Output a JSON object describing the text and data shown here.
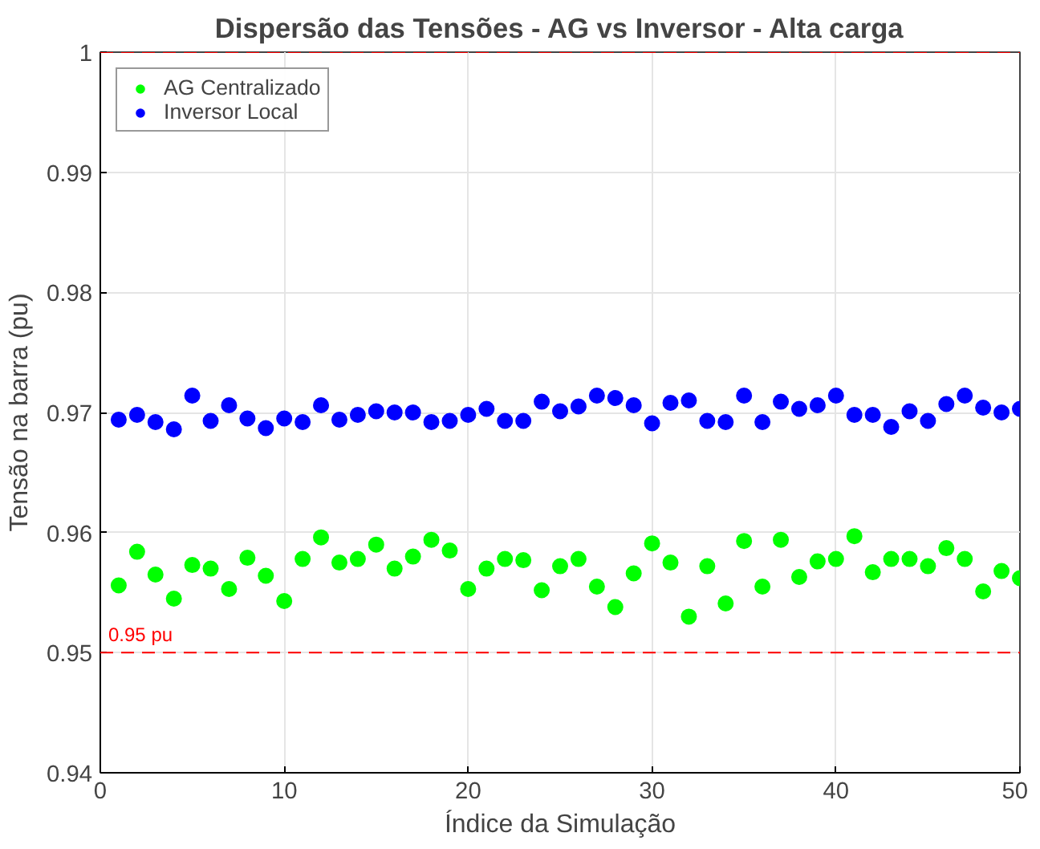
{
  "chart_data": {
    "type": "scatter",
    "title": "Dispersão das Tensões - AG vs Inversor - Alta carga",
    "xlabel": "Índice da Simulação",
    "ylabel": "Tensão na barra (pu)",
    "x": [
      1,
      2,
      3,
      4,
      5,
      6,
      7,
      8,
      9,
      10,
      11,
      12,
      13,
      14,
      15,
      16,
      17,
      18,
      19,
      20,
      21,
      22,
      23,
      24,
      25,
      26,
      27,
      28,
      29,
      30,
      31,
      32,
      33,
      34,
      35,
      36,
      37,
      38,
      39,
      40,
      41,
      42,
      43,
      44,
      45,
      46,
      47,
      48,
      49,
      50
    ],
    "series": [
      {
        "name": "AG Centralizado",
        "color": "#00ff00",
        "values": [
          0.9556,
          0.9584,
          0.9565,
          0.9545,
          0.9573,
          0.957,
          0.9553,
          0.9579,
          0.9564,
          0.9543,
          0.9578,
          0.9596,
          0.9575,
          0.9578,
          0.959,
          0.957,
          0.958,
          0.9594,
          0.9585,
          0.9553,
          0.957,
          0.9578,
          0.9577,
          0.9552,
          0.9572,
          0.9578,
          0.9555,
          0.9538,
          0.9566,
          0.9591,
          0.9575,
          0.953,
          0.9572,
          0.9541,
          0.9593,
          0.9555,
          0.9594,
          0.9563,
          0.9576,
          0.9578,
          0.9597,
          0.9567,
          0.9578,
          0.9578,
          0.9572,
          0.9587,
          0.9578,
          0.9551,
          0.9568,
          0.9562
        ]
      },
      {
        "name": "Inversor Local",
        "color": "#0000ff",
        "values": [
          0.9694,
          0.9698,
          0.9692,
          0.9686,
          0.9714,
          0.9693,
          0.9706,
          0.9695,
          0.9687,
          0.9695,
          0.9692,
          0.9706,
          0.9694,
          0.9698,
          0.9701,
          0.97,
          0.97,
          0.9692,
          0.9693,
          0.9698,
          0.9703,
          0.9693,
          0.9693,
          0.9709,
          0.9701,
          0.9705,
          0.9714,
          0.9712,
          0.9706,
          0.9691,
          0.9708,
          0.971,
          0.9693,
          0.9692,
          0.9714,
          0.9692,
          0.9709,
          0.9703,
          0.9706,
          0.9714,
          0.9698,
          0.9698,
          0.9688,
          0.9701,
          0.9693,
          0.9707,
          0.9714,
          0.9704,
          0.97,
          0.9703
        ]
      }
    ],
    "xlim": [
      0,
      50
    ],
    "xticks": [
      0,
      10,
      20,
      30,
      40,
      50
    ],
    "ylim": [
      0.94,
      1
    ],
    "yticks": [
      {
        "value": 0.94,
        "label": "0.94"
      },
      {
        "value": 0.95,
        "label": "0.95"
      },
      {
        "value": 0.96,
        "label": "0.96"
      },
      {
        "value": 0.97,
        "label": "0.97"
      },
      {
        "value": 0.98,
        "label": "0.98"
      },
      {
        "value": 0.99,
        "label": "0.99"
      },
      {
        "value": 1,
        "label": "1"
      }
    ],
    "ref_lines": [
      {
        "axis": "y",
        "value": 1,
        "label": null,
        "color": "#ff0000",
        "line_style": "dashed"
      },
      {
        "axis": "y",
        "value": 0.95,
        "label": "0.95 pu",
        "color": "#ff0000",
        "line_style": "dashed"
      }
    ],
    "grid": true,
    "legend": "top left",
    "marker": "circle"
  }
}
